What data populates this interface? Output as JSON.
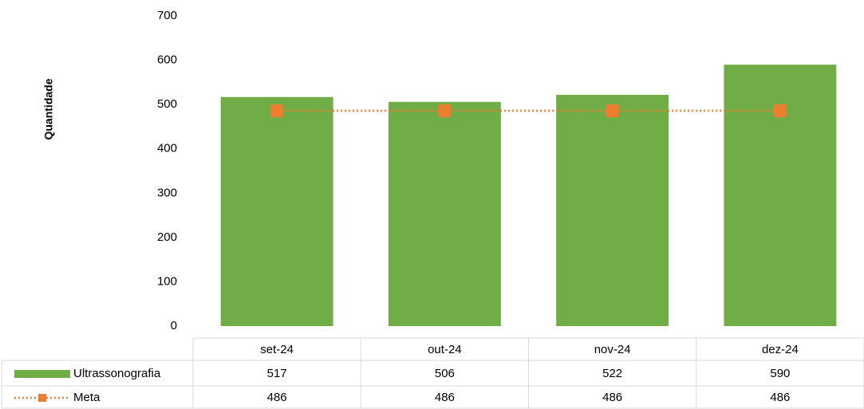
{
  "chart_data": {
    "type": "bar",
    "y_label": "Quantidade",
    "categories": [
      "set-24",
      "out-24",
      "nov-24",
      "dez-24"
    ],
    "series": [
      {
        "name": "Ultrassonografia",
        "type": "bar",
        "color": "#70ad47",
        "values": [
          517,
          506,
          522,
          590
        ]
      },
      {
        "name": "Meta",
        "type": "line",
        "color": "#ed7d31",
        "values": [
          486,
          486,
          486,
          486
        ]
      }
    ],
    "ylim": [
      0,
      700
    ],
    "yticks": [
      0,
      100,
      200,
      300,
      400,
      500,
      600,
      700
    ],
    "grid": false
  }
}
